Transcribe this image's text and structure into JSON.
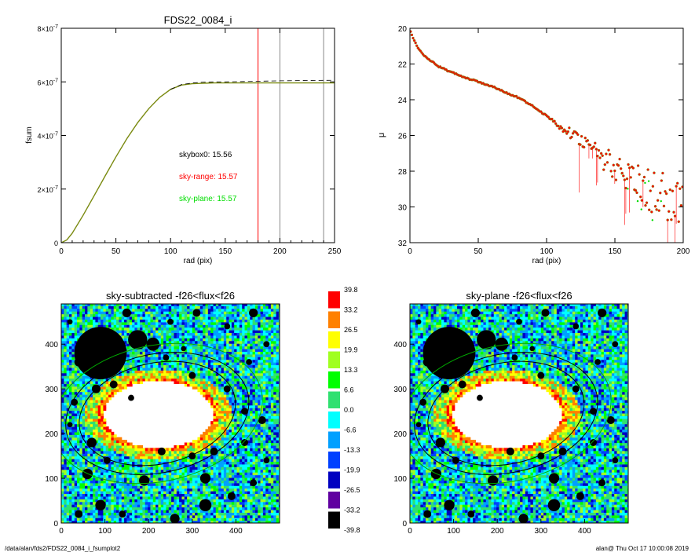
{
  "footer": {
    "path": "/data/alan/fds2/FDS22_0084_i_fsumplot2",
    "stamp": "alan@  Thu Oct 17 10:00:08 2019"
  },
  "colors": {
    "sky_range": "#ff0000",
    "sky_plane": "#00dd00",
    "model": "#7a8a10",
    "mask": "#000000"
  },
  "chart_data": [
    {
      "type": "line",
      "panel": "top-left",
      "title": "FDS22_0084_i",
      "xlabel": "rad (pix)",
      "ylabel": "fsum",
      "xlim": [
        0,
        250
      ],
      "ylim": [
        0,
        8e-07
      ],
      "xticks": [
        "0",
        "50",
        "100",
        "150",
        "200",
        "250"
      ],
      "yticks": [
        {
          "v": 0,
          "base": "0",
          "exp": ""
        },
        {
          "v": 2e-07,
          "base": "2×10",
          "exp": "-7"
        },
        {
          "v": 4e-07,
          "base": "4×10",
          "exp": "-7"
        },
        {
          "v": 6e-07,
          "base": "6×10",
          "exp": "-7"
        },
        {
          "v": 8e-07,
          "base": "8×10",
          "exp": "-7"
        }
      ],
      "vlines": [
        {
          "x": 180,
          "color": "#ff0000"
        },
        {
          "x": 200,
          "color": "#888888"
        },
        {
          "x": 240,
          "color": "#888888"
        }
      ],
      "annotations": [
        {
          "text": "skybox0: 15.56",
          "color": "#000000"
        },
        {
          "text": "sky-range: 15.57",
          "color": "#ff0000"
        },
        {
          "text": "sky-plane: 15.57",
          "color": "#00dd00"
        }
      ],
      "series": [
        {
          "style": "solid",
          "x": [
            0,
            5,
            10,
            20,
            30,
            40,
            50,
            60,
            70,
            80,
            90,
            100,
            110,
            120,
            130,
            140,
            150,
            175,
            200,
            225,
            250
          ],
          "y": [
            0,
            1e-08,
            3.5e-08,
            1.02e-07,
            1.75e-07,
            2.48e-07,
            3.2e-07,
            3.88e-07,
            4.48e-07,
            5e-07,
            5.42e-07,
            5.72e-07,
            5.88e-07,
            5.93e-07,
            5.95e-07,
            5.96e-07,
            5.96e-07,
            5.96e-07,
            5.96e-07,
            5.96e-07,
            5.96e-07
          ]
        },
        {
          "style": "dashed",
          "x": [
            100,
            110,
            120,
            130,
            140,
            150,
            175,
            200,
            225,
            250
          ],
          "y": [
            5.72e-07,
            5.9e-07,
            5.96e-07,
            5.99e-07,
            6e-07,
            6e-07,
            6.02e-07,
            6.04e-07,
            6.05e-07,
            6.06e-07
          ]
        }
      ]
    },
    {
      "type": "scatter",
      "panel": "top-right",
      "xlabel": "rad (pix)",
      "ylabel": "μ",
      "xlim": [
        0,
        200
      ],
      "ylim": [
        32,
        20
      ],
      "xticks": [
        "0",
        "50",
        "100",
        "150",
        "200"
      ],
      "yticks": [
        "20",
        "22",
        "24",
        "26",
        "28",
        "30",
        "32"
      ],
      "profile_x": [
        0,
        5,
        10,
        20,
        30,
        40,
        50,
        60,
        70,
        80,
        90,
        100,
        110,
        120,
        130,
        140,
        150,
        160,
        170,
        180,
        190,
        200
      ],
      "profile_y": [
        20.1,
        21.0,
        21.5,
        22.1,
        22.45,
        22.75,
        23.0,
        23.25,
        23.6,
        23.9,
        24.35,
        24.9,
        25.5,
        26.0,
        26.6,
        27.2,
        27.8,
        28.3,
        28.8,
        29.2,
        29.6,
        29.9
      ]
    },
    {
      "type": "heatmap",
      "panel": "bottom-left",
      "title": "sky-subtracted -f26<flux<f26",
      "xlim": [
        0,
        500
      ],
      "ylim": [
        0,
        490
      ],
      "xticks": [
        "0",
        "100",
        "200",
        "300",
        "400"
      ],
      "yticks": [
        "0",
        "100",
        "200",
        "300",
        "400"
      ]
    },
    {
      "type": "heatmap",
      "panel": "bottom-right",
      "title": "sky-plane -f26<flux<f26",
      "xlim": [
        0,
        500
      ],
      "ylim": [
        0,
        490
      ],
      "xticks": [
        "0",
        "100",
        "200",
        "300",
        "400"
      ],
      "yticks": [
        "0",
        "100",
        "200",
        "300",
        "400"
      ]
    }
  ],
  "colorbar": {
    "labels": [
      "39.8",
      "33.2",
      "26.5",
      "19.9",
      "13.3",
      "6.6",
      "0.0",
      "-6.6",
      "-13.3",
      "-19.9",
      "-26.5",
      "-33.2",
      "-39.8"
    ],
    "colors": [
      "#ff0000",
      "#ff8000",
      "#ffff00",
      "#a0ff20",
      "#00ff00",
      "#30e070",
      "#00ffff",
      "#00a0ff",
      "#0040ff",
      "#0000c0",
      "#6000a0",
      "#000000"
    ]
  }
}
